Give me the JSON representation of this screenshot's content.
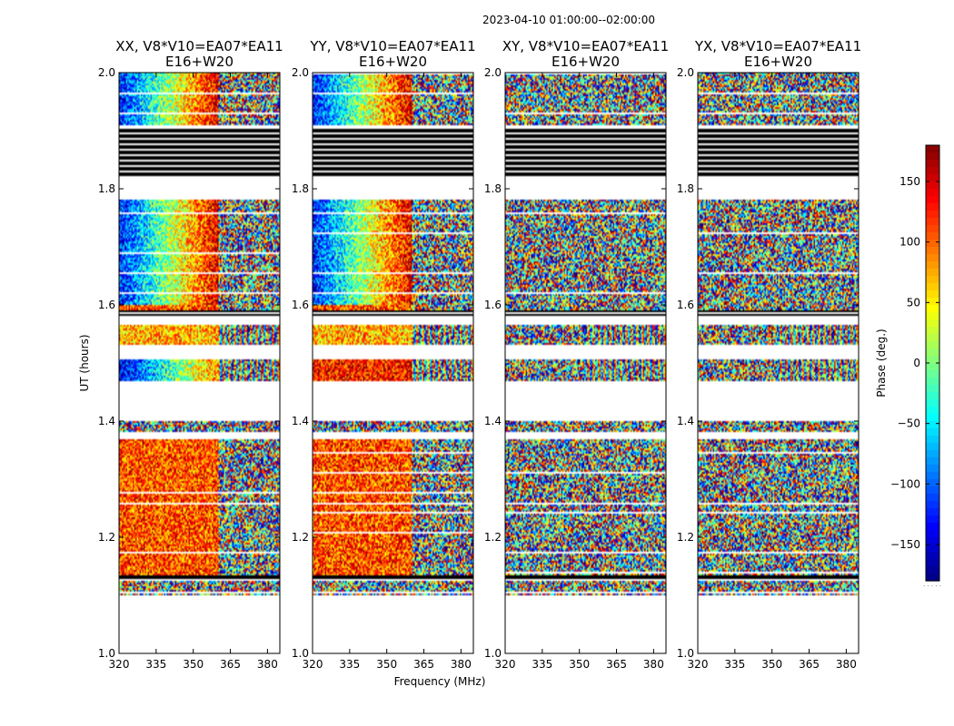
{
  "figure": {
    "suptitle": "2023-04-10  01:00:00--02:00:00",
    "xlabel": "Frequency (MHz)",
    "ylabel": "UT (hours)",
    "colorbar_label": "Phase (deg.)",
    "colorbar_dots": "· · · · ·"
  },
  "chart_data": [
    {
      "type": "heatmap",
      "title_line1": "XX, V8*V10=EA07*EA11",
      "title_line2": "E16+W20",
      "pol": "XX",
      "xlabel": "Frequency (MHz)",
      "ylabel": "UT (hours)",
      "xlim": [
        320,
        385
      ],
      "ylim": [
        1.0,
        2.0
      ],
      "xticks": [
        "320",
        "335",
        "350",
        "365",
        "380"
      ],
      "yticks": [
        "1.0",
        "1.2",
        "1.4",
        "1.6",
        "1.8",
        "2.0"
      ],
      "rfi_cutoff_mhz": 360,
      "colormap": "jet",
      "vmin": -180,
      "vmax": 180
    },
    {
      "type": "heatmap",
      "title_line1": "YY, V8*V10=EA07*EA11",
      "title_line2": "E16+W20",
      "pol": "YY",
      "xlabel": "Frequency (MHz)",
      "ylabel": "UT (hours)",
      "xlim": [
        320,
        385
      ],
      "ylim": [
        1.0,
        2.0
      ],
      "xticks": [
        "320",
        "335",
        "350",
        "365",
        "380"
      ],
      "yticks": [
        "1.0",
        "1.2",
        "1.4",
        "1.6",
        "1.8",
        "2.0"
      ],
      "rfi_cutoff_mhz": 360,
      "colormap": "jet",
      "vmin": -180,
      "vmax": 180
    },
    {
      "type": "heatmap",
      "title_line1": "XY, V8*V10=EA07*EA11",
      "title_line2": "E16+W20",
      "pol": "XY",
      "xlabel": "Frequency (MHz)",
      "ylabel": "UT (hours)",
      "xlim": [
        320,
        385
      ],
      "ylim": [
        1.0,
        2.0
      ],
      "xticks": [
        "320",
        "335",
        "350",
        "365",
        "380"
      ],
      "yticks": [
        "1.0",
        "1.2",
        "1.4",
        "1.6",
        "1.8",
        "2.0"
      ],
      "rfi_cutoff_mhz": 352,
      "colormap": "jet",
      "vmin": -180,
      "vmax": 180
    },
    {
      "type": "heatmap",
      "title_line1": "YX, V8*V10=EA07*EA11",
      "title_line2": "E16+W20",
      "pol": "YX",
      "xlabel": "Frequency (MHz)",
      "ylabel": "UT (hours)",
      "xlim": [
        320,
        385
      ],
      "ylim": [
        1.0,
        2.0
      ],
      "xticks": [
        "320",
        "335",
        "350",
        "365",
        "380"
      ],
      "yticks": [
        "1.0",
        "1.2",
        "1.4",
        "1.6",
        "1.8",
        "2.0"
      ],
      "rfi_cutoff_mhz": 352,
      "colormap": "jet",
      "vmin": -180,
      "vmax": 180
    }
  ],
  "time_segments_ut": [
    [
      1.1,
      1.125,
      "noise"
    ],
    [
      1.125,
      1.135,
      "blank"
    ],
    [
      1.135,
      1.255,
      "signal"
    ],
    [
      1.255,
      1.26,
      "blank"
    ],
    [
      1.26,
      1.37,
      "signal_striped"
    ],
    [
      1.38,
      1.4,
      "noise"
    ],
    [
      1.47,
      1.505,
      "band"
    ],
    [
      1.53,
      1.565,
      "band"
    ],
    [
      1.58,
      1.59,
      "blank"
    ],
    [
      1.59,
      1.78,
      "signal_striped"
    ],
    [
      1.82,
      1.905,
      "blank"
    ],
    [
      1.91,
      2.0,
      "signal_striped"
    ]
  ],
  "colorbar": {
    "vmin": -180,
    "vmax": 180,
    "ticks": [
      "150",
      "100",
      "50",
      "0",
      "−50",
      "−100",
      "−150"
    ],
    "tick_values": [
      150,
      100,
      50,
      0,
      -50,
      -100,
      -150
    ]
  }
}
